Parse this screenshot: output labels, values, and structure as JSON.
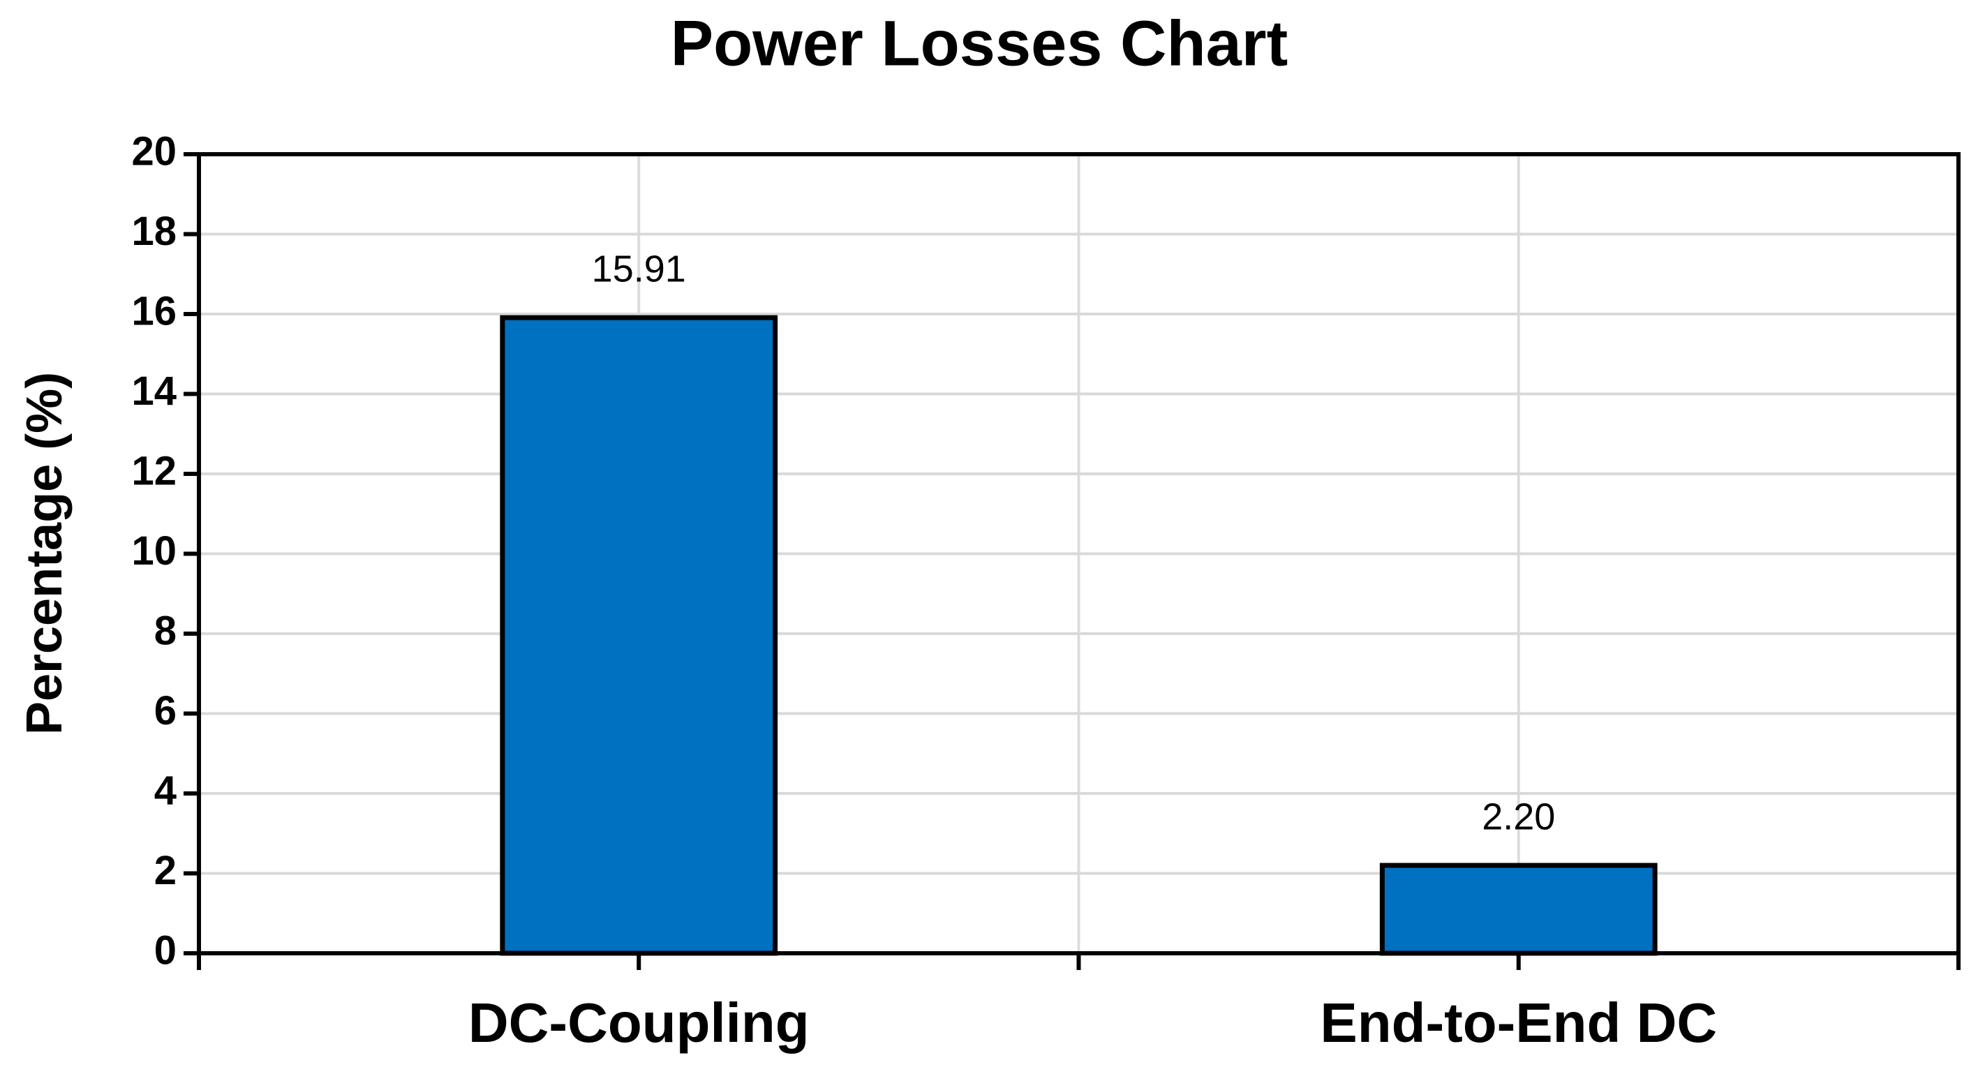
{
  "chart_data": {
    "type": "bar",
    "title": "Power Losses Chart",
    "y_label": "Percentage (%)",
    "categories": [
      "DC-Coupling",
      "End-to-End DC"
    ],
    "values": [
      15.91,
      2.2
    ],
    "value_labels": [
      "15.91",
      "2.20"
    ],
    "color": "#0070c0",
    "ylim": [
      0,
      20
    ],
    "yticks": [
      0,
      2,
      4,
      6,
      8,
      10,
      12,
      14,
      16,
      18,
      20
    ],
    "grid": true
  }
}
